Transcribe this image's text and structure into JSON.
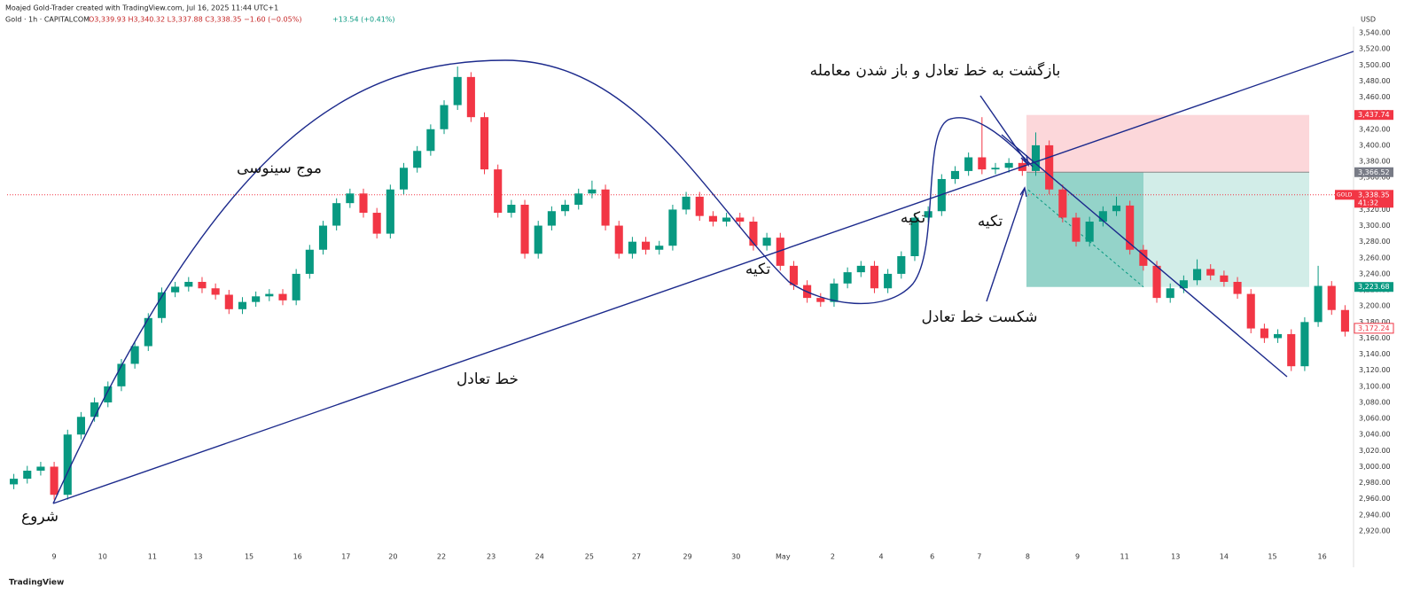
{
  "header": {
    "author": "Moajed Gold-Trader created with TradingView.com, Jul 16, 2025 11:44 UTC+1",
    "symbol": "Gold · 1h · CAPITALCOM",
    "ohlc": "O3,339.93 H3,340.32 L3,337.88 C3,338.35 −1.60 (−0.05%)",
    "change": "+13.54 (+0.41%)"
  },
  "footer": "TradingView",
  "chart_data": {
    "type": "candlestick",
    "currency": "USD",
    "up_color": "#089981",
    "down_color": "#f23645",
    "grid": false,
    "ylim": [
      2920,
      3540
    ],
    "yticks": [
      {
        "value": 2920,
        "label": "2,920.00"
      },
      {
        "value": 2940,
        "label": "2,940.00"
      },
      {
        "value": 2960,
        "label": "2,960.00"
      },
      {
        "value": 2980,
        "label": "2,980.00"
      },
      {
        "value": 3000,
        "label": "3,000.00"
      },
      {
        "value": 3020,
        "label": "3,020.00"
      },
      {
        "value": 3040,
        "label": "3,040.00"
      },
      {
        "value": 3060,
        "label": "3,060.00"
      },
      {
        "value": 3080,
        "label": "3,080.00"
      },
      {
        "value": 3100,
        "label": "3,100.00"
      },
      {
        "value": 3120,
        "label": "3,120.00"
      },
      {
        "value": 3140,
        "label": "3,140.00"
      },
      {
        "value": 3160,
        "label": "3,160.00"
      },
      {
        "value": 3180,
        "label": "3,180.00"
      },
      {
        "value": 3200,
        "label": "3,200.00"
      },
      {
        "value": 3220,
        "label": "3,220.00"
      },
      {
        "value": 3240,
        "label": "3,240.00"
      },
      {
        "value": 3260,
        "label": "3,260.00"
      },
      {
        "value": 3280,
        "label": "3,280.00"
      },
      {
        "value": 3300,
        "label": "3,300.00"
      },
      {
        "value": 3320,
        "label": "3,320.00"
      },
      {
        "value": 3340,
        "label": "3,340.00"
      },
      {
        "value": 3360,
        "label": "3,360.00"
      },
      {
        "value": 3380,
        "label": "3,380.00"
      },
      {
        "value": 3400,
        "label": "3,400.00"
      },
      {
        "value": 3420,
        "label": "3,420.00"
      },
      {
        "value": 3440,
        "label": "3,440.00"
      },
      {
        "value": 3460,
        "label": "3,460.00"
      },
      {
        "value": 3480,
        "label": "3,480.00"
      },
      {
        "value": 3500,
        "label": "3,500.00"
      },
      {
        "value": 3520,
        "label": "3,520.00"
      },
      {
        "value": 3540,
        "label": "3,540.00"
      }
    ],
    "xlim": [
      0,
      100
    ],
    "xticks": [
      {
        "value": 3.5,
        "label": "9"
      },
      {
        "value": 7.1,
        "label": "10"
      },
      {
        "value": 10.8,
        "label": "11"
      },
      {
        "value": 14.2,
        "label": "13"
      },
      {
        "value": 18.0,
        "label": "15"
      },
      {
        "value": 21.6,
        "label": "16"
      },
      {
        "value": 25.2,
        "label": "17"
      },
      {
        "value": 28.7,
        "label": "20"
      },
      {
        "value": 32.3,
        "label": "22"
      },
      {
        "value": 36.0,
        "label": "23"
      },
      {
        "value": 39.6,
        "label": "24"
      },
      {
        "value": 43.3,
        "label": "25"
      },
      {
        "value": 46.8,
        "label": "27"
      },
      {
        "value": 50.6,
        "label": "29"
      },
      {
        "value": 54.2,
        "label": "30"
      },
      {
        "value": 57.7,
        "label": "May"
      },
      {
        "value": 61.4,
        "label": "2"
      },
      {
        "value": 65.0,
        "label": "4"
      },
      {
        "value": 68.8,
        "label": "6"
      },
      {
        "value": 72.3,
        "label": "7"
      },
      {
        "value": 75.9,
        "label": "8"
      },
      {
        "value": 79.6,
        "label": "9"
      },
      {
        "value": 83.1,
        "label": "11"
      },
      {
        "value": 86.9,
        "label": "13"
      },
      {
        "value": 90.5,
        "label": "14"
      },
      {
        "value": 94.1,
        "label": "15"
      },
      {
        "value": 97.8,
        "label": "16"
      }
    ],
    "candles": [
      [
        2978,
        2991,
        2972,
        2985
      ],
      [
        2985,
        3001,
        2979,
        2995
      ],
      [
        2995,
        3006,
        2989,
        3000
      ],
      [
        3000,
        3006,
        2959,
        2965
      ],
      [
        2965,
        3046,
        2959,
        3040
      ],
      [
        3040,
        3068,
        3034,
        3062
      ],
      [
        3062,
        3086,
        3056,
        3080
      ],
      [
        3080,
        3106,
        3074,
        3100
      ],
      [
        3100,
        3134,
        3094,
        3128
      ],
      [
        3128,
        3156,
        3122,
        3150
      ],
      [
        3150,
        3191,
        3144,
        3185
      ],
      [
        3185,
        3223,
        3179,
        3217
      ],
      [
        3217,
        3230,
        3211,
        3224
      ],
      [
        3224,
        3236,
        3218,
        3230
      ],
      [
        3230,
        3236,
        3216,
        3222
      ],
      [
        3222,
        3228,
        3208,
        3214
      ],
      [
        3214,
        3220,
        3190,
        3196
      ],
      [
        3196,
        3211,
        3190,
        3205
      ],
      [
        3205,
        3218,
        3199,
        3212
      ],
      [
        3212,
        3221,
        3206,
        3215
      ],
      [
        3215,
        3221,
        3201,
        3207
      ],
      [
        3207,
        3246,
        3201,
        3240
      ],
      [
        3240,
        3276,
        3234,
        3270
      ],
      [
        3270,
        3306,
        3264,
        3300
      ],
      [
        3300,
        3334,
        3294,
        3328
      ],
      [
        3328,
        3346,
        3322,
        3340
      ],
      [
        3340,
        3346,
        3310,
        3316
      ],
      [
        3316,
        3322,
        3284,
        3290
      ],
      [
        3290,
        3351,
        3284,
        3345
      ],
      [
        3345,
        3378,
        3339,
        3372
      ],
      [
        3372,
        3399,
        3366,
        3393
      ],
      [
        3393,
        3426,
        3387,
        3420
      ],
      [
        3420,
        3456,
        3414,
        3450
      ],
      [
        3450,
        3498,
        3444,
        3485
      ],
      [
        3485,
        3491,
        3429,
        3435
      ],
      [
        3435,
        3441,
        3364,
        3370
      ],
      [
        3370,
        3376,
        3310,
        3316
      ],
      [
        3316,
        3332,
        3310,
        3326
      ],
      [
        3326,
        3332,
        3259,
        3265
      ],
      [
        3265,
        3306,
        3259,
        3300
      ],
      [
        3300,
        3324,
        3294,
        3318
      ],
      [
        3318,
        3332,
        3312,
        3326
      ],
      [
        3326,
        3346,
        3320,
        3340
      ],
      [
        3340,
        3356,
        3334,
        3345
      ],
      [
        3345,
        3351,
        3294,
        3300
      ],
      [
        3300,
        3306,
        3259,
        3265
      ],
      [
        3265,
        3286,
        3259,
        3280
      ],
      [
        3280,
        3286,
        3264,
        3270
      ],
      [
        3270,
        3281,
        3264,
        3275
      ],
      [
        3275,
        3326,
        3269,
        3320
      ],
      [
        3320,
        3342,
        3314,
        3336
      ],
      [
        3336,
        3342,
        3306,
        3312
      ],
      [
        3312,
        3318,
        3299,
        3305
      ],
      [
        3305,
        3316,
        3299,
        3310
      ],
      [
        3310,
        3316,
        3299,
        3305
      ],
      [
        3305,
        3311,
        3269,
        3275
      ],
      [
        3275,
        3291,
        3269,
        3285
      ],
      [
        3285,
        3291,
        3244,
        3250
      ],
      [
        3250,
        3256,
        3220,
        3226
      ],
      [
        3226,
        3232,
        3204,
        3210
      ],
      [
        3210,
        3216,
        3199,
        3205
      ],
      [
        3205,
        3234,
        3199,
        3228
      ],
      [
        3228,
        3248,
        3222,
        3242
      ],
      [
        3242,
        3256,
        3236,
        3250
      ],
      [
        3250,
        3256,
        3216,
        3222
      ],
      [
        3222,
        3246,
        3216,
        3240
      ],
      [
        3240,
        3268,
        3234,
        3262
      ],
      [
        3262,
        3316,
        3256,
        3310
      ],
      [
        3310,
        3324,
        3304,
        3318
      ],
      [
        3318,
        3364,
        3312,
        3358
      ],
      [
        3358,
        3374,
        3352,
        3368
      ],
      [
        3368,
        3391,
        3362,
        3385
      ],
      [
        3385,
        3435,
        3364,
        3370
      ],
      [
        3370,
        3378,
        3364,
        3372
      ],
      [
        3372,
        3384,
        3366,
        3378
      ],
      [
        3378,
        3384,
        3362,
        3368
      ],
      [
        3368,
        3416,
        3362,
        3400
      ],
      [
        3400,
        3406,
        3339,
        3345
      ],
      [
        3345,
        3351,
        3304,
        3310
      ],
      [
        3310,
        3316,
        3274,
        3280
      ],
      [
        3280,
        3311,
        3274,
        3305
      ],
      [
        3305,
        3324,
        3299,
        3318
      ],
      [
        3318,
        3336,
        3312,
        3325
      ],
      [
        3325,
        3331,
        3264,
        3270
      ],
      [
        3270,
        3276,
        3244,
        3250
      ],
      [
        3250,
        3256,
        3204,
        3210
      ],
      [
        3210,
        3228,
        3204,
        3222
      ],
      [
        3222,
        3238,
        3216,
        3232
      ],
      [
        3232,
        3258,
        3226,
        3246
      ],
      [
        3246,
        3252,
        3232,
        3238
      ],
      [
        3238,
        3244,
        3224,
        3230
      ],
      [
        3230,
        3236,
        3209,
        3215
      ],
      [
        3215,
        3221,
        3166,
        3172
      ],
      [
        3172,
        3178,
        3154,
        3160
      ],
      [
        3160,
        3171,
        3154,
        3165
      ],
      [
        3165,
        3171,
        3119,
        3125
      ],
      [
        3125,
        3186,
        3119,
        3180
      ],
      [
        3180,
        3250,
        3174,
        3225
      ],
      [
        3225,
        3231,
        3189,
        3195
      ],
      [
        3195,
        3201,
        3162,
        3168
      ]
    ],
    "price_labels": {
      "stop": {
        "value": 3437.74,
        "label": "3,437.74"
      },
      "entry": {
        "value": 3366.52,
        "label": "3,366.52"
      },
      "current": {
        "symbol": "GOLD",
        "value": 3338.35,
        "label": "3,338.35",
        "countdown": "41:32"
      },
      "target": {
        "value": 3223.68,
        "label": "3,223.68"
      },
      "last": {
        "value": 3172.24,
        "label": "3,172.24"
      }
    },
    "annotations": [
      "موج سینوسی",
      "خط تعادل",
      "شروع",
      "تکیه",
      "تکیه",
      "تکیه",
      "بازگشت به خط تعادل و باز شدن معامله",
      "شکست خط تعادل"
    ]
  }
}
